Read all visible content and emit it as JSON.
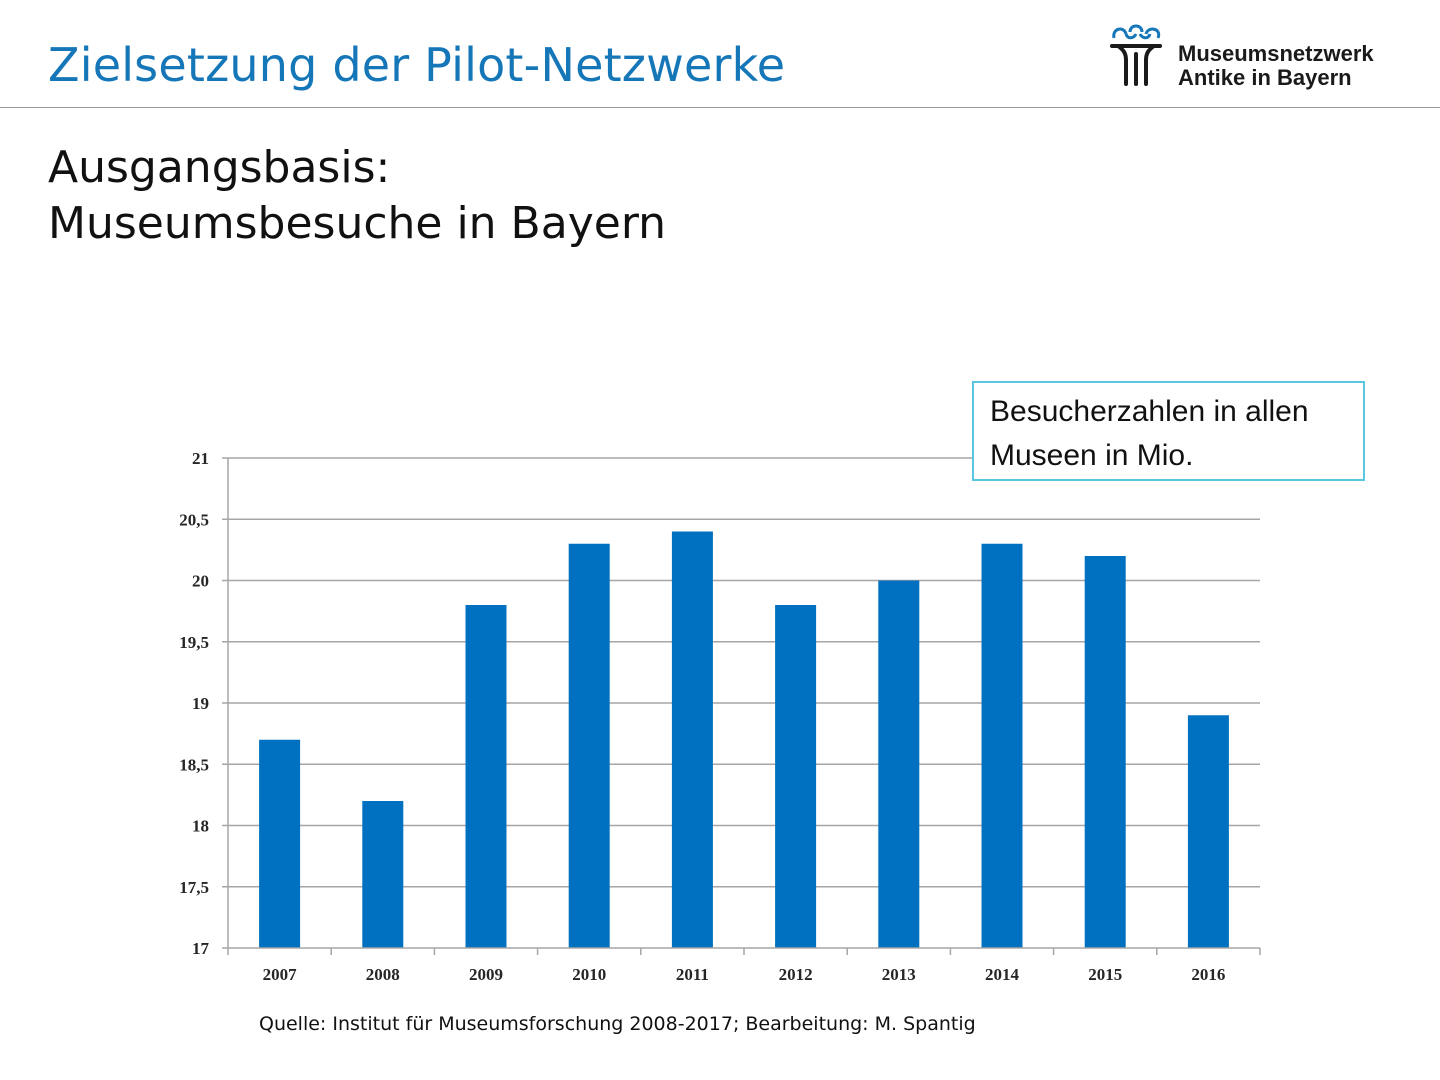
{
  "header": {
    "title": "Zielsetzung der Pilot-Netzwerke",
    "logo_line1": "Museumsnetzwerk",
    "logo_line2": "Antike in Bayern",
    "logo_icon": "museum-column-icon"
  },
  "heading": {
    "line1": "Ausgangsbasis:",
    "line2": "Museumsbesuche in Bayern"
  },
  "legend_box": {
    "line1": "Besucherzahlen in allen",
    "line2": "Museen in Mio."
  },
  "source": "Quelle: Institut für Museumsforschung 2008-2017; Bearbeitung: M. Spantig",
  "colors": {
    "title": "#1677b8",
    "bar": "#0070c0",
    "legend_border": "#5bc6e0",
    "gridline": "#a6a6a6"
  },
  "chart_data": {
    "type": "bar",
    "categories": [
      "2007",
      "2008",
      "2009",
      "2010",
      "2011",
      "2012",
      "2013",
      "2014",
      "2015",
      "2016"
    ],
    "values": [
      18.7,
      18.2,
      19.8,
      20.3,
      20.4,
      19.8,
      20.0,
      20.3,
      20.2,
      18.9
    ],
    "ylim": [
      17,
      21
    ],
    "yticks": [
      17,
      17.5,
      18,
      18.5,
      19,
      19.5,
      20,
      20.5,
      21
    ],
    "ytick_labels": [
      "17",
      "17,5",
      "18",
      "18,5",
      "19",
      "19,5",
      "20",
      "20,5",
      "21"
    ],
    "grid": true,
    "legend": "none"
  }
}
